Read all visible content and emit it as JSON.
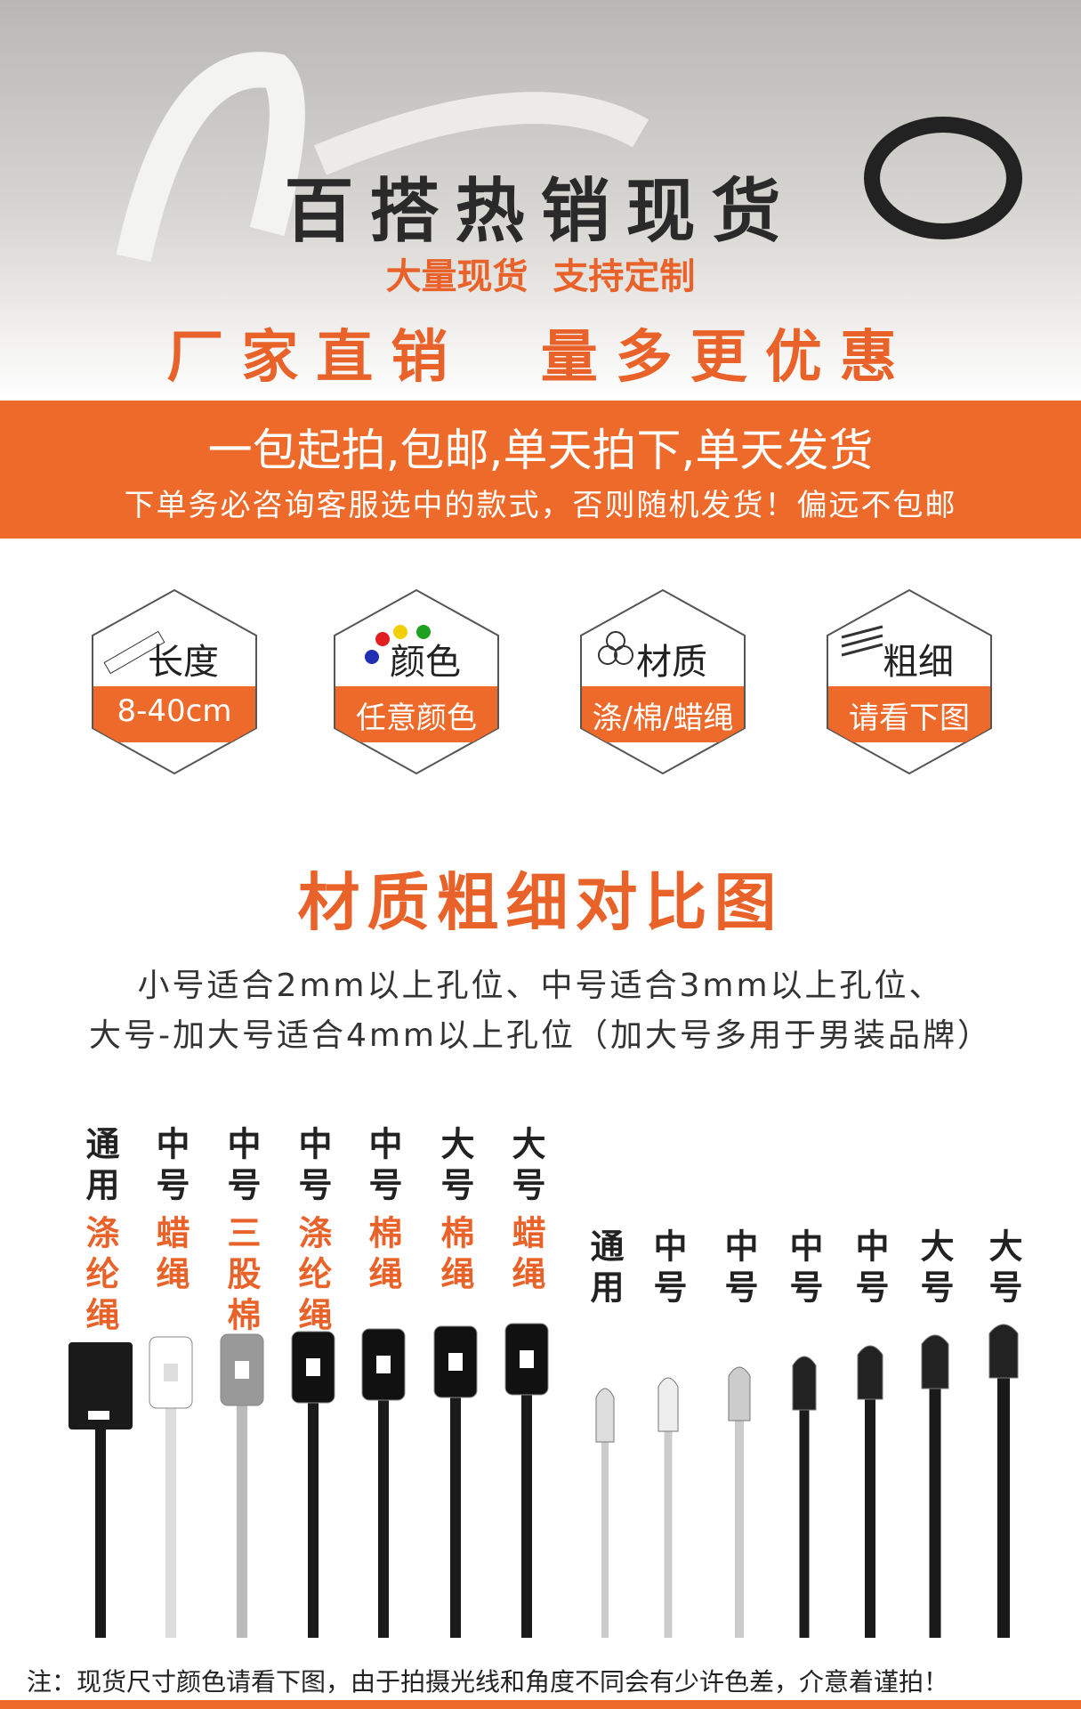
{
  "header": {
    "title": "百搭热销现货",
    "subtitle": "大量现货  支持定制",
    "slogan": "厂家直销  量多更优惠"
  },
  "banner": {
    "line1": "一包起拍,包邮,单天拍下,单天发货",
    "line2": "下单务必咨询客服选中的款式，否则随机发货！偏远不包邮"
  },
  "features": [
    {
      "name": "长度",
      "value": "8-40cm"
    },
    {
      "name": "颜色",
      "value": "任意颜色"
    },
    {
      "name": "材质",
      "value": "涤/棉/蜡绳"
    },
    {
      "name": "粗细",
      "value": "请看下图"
    }
  ],
  "comparison": {
    "title": "材质粗细对比图",
    "description": [
      "小号适合2mm以上孔位、中号适合3mm以上孔位、",
      "大号-加大号适合4mm以上孔位（加大号多用于男装品牌）"
    ],
    "left_group": [
      {
        "size": "通用",
        "material": "涤纶绳"
      },
      {
        "size": "中号",
        "material": "蜡绳"
      },
      {
        "size": "中号",
        "material": "三股棉"
      },
      {
        "size": "中号",
        "material": "涤纶绳"
      },
      {
        "size": "中号",
        "material": "棉绳"
      },
      {
        "size": "大号",
        "material": "棉绳"
      },
      {
        "size": "大号",
        "material": "蜡绳"
      }
    ],
    "right_group": [
      "通用",
      "中号",
      "中号",
      "中号",
      "中号",
      "大号",
      "大号"
    ]
  },
  "note": "注：现货尺寸颜色请看下图，由于拍摄光线和角度不同会有少许色差，介意着谨拍！"
}
